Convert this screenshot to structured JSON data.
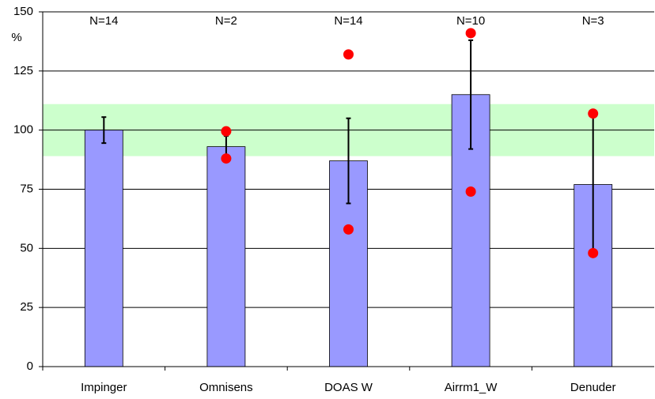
{
  "chart_data": {
    "type": "bar",
    "y_label": "%",
    "categories": [
      "Impinger",
      "Omnisens",
      "DOAS W",
      "Airrm1_W",
      "Denuder"
    ],
    "values": [
      100,
      93,
      87,
      115,
      77
    ],
    "errors": [
      5.5,
      4.5,
      18,
      23,
      29
    ],
    "color": "#9999ff",
    "error_color": "#000000",
    "markers": [
      {
        "color": "#ff0000",
        "values": [
          null,
          99.5,
          132,
          141,
          107
        ]
      },
      {
        "color": "#ff0000",
        "values": [
          null,
          88,
          58,
          74,
          48
        ]
      }
    ],
    "band": [
      89,
      111
    ],
    "band_color": "#ccffcc",
    "annotations": [
      "N=14",
      "N=2",
      "N=14",
      "N=10",
      "N=3"
    ],
    "ylim": [
      0,
      150
    ],
    "yticks": [
      0,
      25,
      50,
      75,
      100,
      125,
      150
    ],
    "grid": true
  }
}
